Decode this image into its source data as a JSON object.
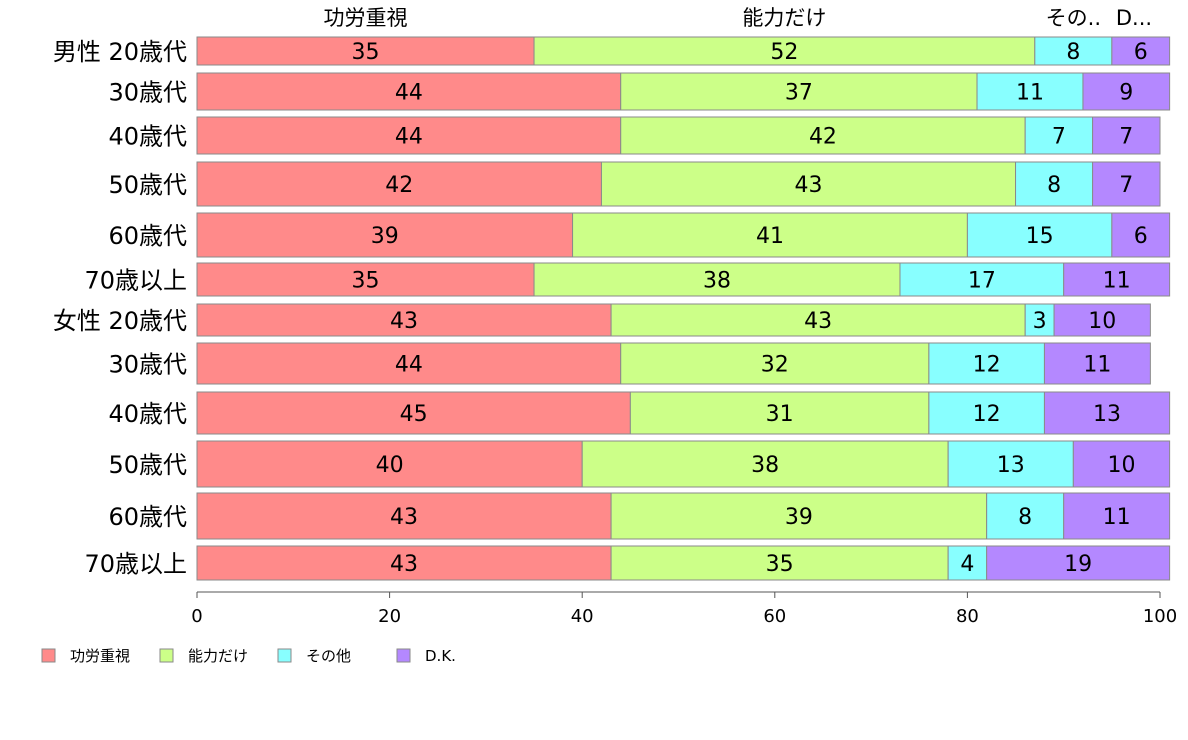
{
  "chart_data": {
    "type": "bar",
    "orientation": "horizontal",
    "stacked": true,
    "categories": [
      "男性 20歳代",
      "30歳代",
      "40歳代",
      "50歳代",
      "60歳代",
      "70歳以上",
      "女性 20歳代",
      "30歳代",
      "40歳代",
      "50歳代",
      "60歳代",
      "70歳以上"
    ],
    "series": [
      {
        "name": "功労重視",
        "color": "#ff8a8a",
        "values": [
          35,
          44,
          44,
          42,
          39,
          35,
          43,
          44,
          45,
          40,
          43,
          43
        ]
      },
      {
        "name": "能力だけ",
        "color": "#ccff88",
        "values": [
          52,
          37,
          42,
          43,
          41,
          38,
          43,
          32,
          31,
          38,
          39,
          35
        ]
      },
      {
        "name": "その他",
        "color": "#88ffff",
        "values": [
          8,
          11,
          7,
          8,
          15,
          17,
          3,
          12,
          12,
          13,
          8,
          4
        ]
      },
      {
        "name": "D.K.",
        "color": "#b488ff",
        "values": [
          6,
          9,
          7,
          7,
          6,
          11,
          10,
          11,
          13,
          10,
          11,
          19
        ]
      }
    ],
    "top_labels": [
      "功労重視",
      "能力だけ",
      "その..",
      "D..."
    ],
    "x_ticks": [
      "0",
      "20",
      "40",
      "60",
      "80",
      "100"
    ],
    "xlim": [
      0,
      100
    ],
    "xlabel": "",
    "ylabel": "",
    "title": "",
    "legend": {
      "position": "bottom-left",
      "entries": [
        "功労重視",
        "能力だけ",
        "その他",
        "D.K."
      ]
    },
    "grid": false
  }
}
